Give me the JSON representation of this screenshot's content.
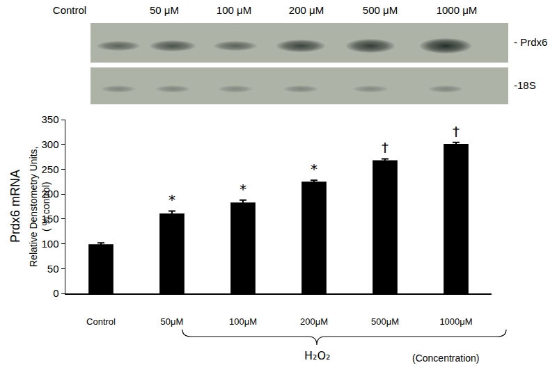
{
  "chart_data": {
    "type": "bar",
    "categories": [
      "Control",
      "50μM",
      "100μM",
      "200μM",
      "500μM",
      "1000μM"
    ],
    "values": [
      99,
      161,
      183,
      225,
      268,
      301
    ],
    "errors": [
      3,
      5,
      5,
      3,
      3,
      3
    ],
    "color": "#000000",
    "ylim": [
      0,
      350
    ],
    "yticks": [
      0,
      50,
      100,
      150,
      200,
      250,
      300,
      350
    ],
    "grid": false,
    "y_label": [
      "Prdx6 mRNA",
      "Relative Denstometry Units,",
      "( % control)"
    ],
    "annotations": [
      {
        "category": "50μM",
        "text": "*"
      },
      {
        "category": "100μM",
        "text": "*"
      },
      {
        "category": "200μM",
        "text": "*"
      },
      {
        "category": "500μM",
        "text": "†"
      },
      {
        "category": "1000μM",
        "text": "†"
      }
    ],
    "group_label": "H₂O₂",
    "group_note": "(Concentration)"
  },
  "blot": {
    "lanes": [
      "Control",
      "50 μM",
      "100 μM",
      "200 μM",
      "500 μM",
      "1000 μM"
    ],
    "bands": [
      "- Prdx6",
      "-18S"
    ]
  }
}
